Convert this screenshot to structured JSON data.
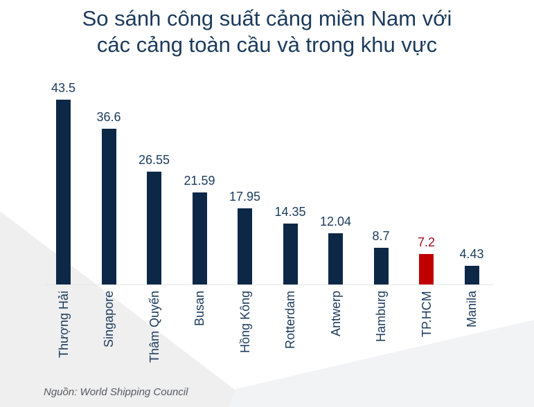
{
  "chart_data": {
    "type": "bar",
    "title": "So sánh công suất cảng miền Nam với các cảng toàn cầu và trong khu vực",
    "title_lines": [
      "So sánh công suất cảng miền Nam với",
      "các cảng toàn cầu và trong khu vực"
    ],
    "categories": [
      "Thượng Hải",
      "Singapore",
      "Thâm Quyến",
      "Busan",
      "Hồng Kông",
      "Rotterdam",
      "Antwerp",
      "Hamburg",
      "TP.HCM",
      "Manila"
    ],
    "values": [
      43.5,
      36.6,
      26.55,
      21.59,
      17.95,
      14.35,
      12.04,
      8.7,
      7.2,
      4.43
    ],
    "value_labels": [
      "43.5",
      "36.6",
      "26.55",
      "21.59",
      "17.95",
      "14.35",
      "12.04",
      "8.7",
      "7.2",
      "4.43"
    ],
    "highlight_index": 8,
    "xlabel": "",
    "ylabel": "",
    "ylim": [
      0,
      45
    ],
    "grid": false,
    "legend": null,
    "colors": {
      "default": "#0d2847",
      "highlight": "#c00000",
      "highlight_label": "#a01020"
    },
    "source": "Nguồn: World Shipping Council"
  }
}
